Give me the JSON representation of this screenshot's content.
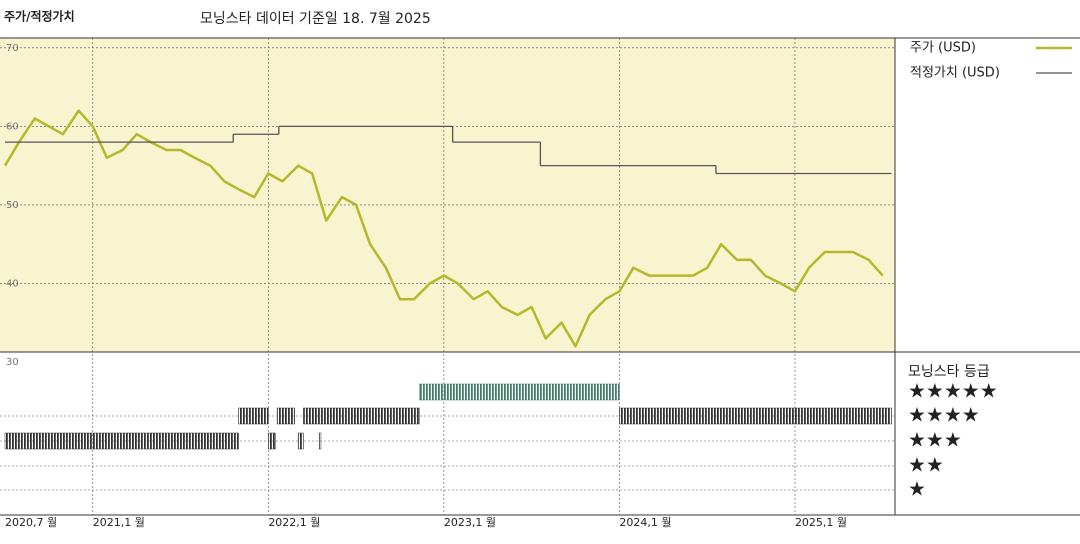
{
  "chart_data": {
    "type": "line",
    "title": "주가/적정가치",
    "subtitle": "모닝스타 데이터 기준일 18. 7월 2025",
    "xlim": [
      2020.5,
      2025.57
    ],
    "xticks": [
      {
        "value": 2020.5,
        "label": "2020,7 월"
      },
      {
        "value": 2021.0,
        "label": "2021,1 월"
      },
      {
        "value": 2022.0,
        "label": "2022,1 월"
      },
      {
        "value": 2023.0,
        "label": "2023,1 월"
      },
      {
        "value": 2024.0,
        "label": "2024,1 월"
      },
      {
        "value": 2025.0,
        "label": "2025,1 월"
      }
    ],
    "ylim": [
      30,
      71
    ],
    "yticks": [
      30,
      40,
      50,
      60,
      70
    ],
    "grid": true,
    "series": [
      {
        "name": "주가 (USD)",
        "color": "#b5b82a",
        "x": [
          2020.5,
          2020.58,
          2020.67,
          2020.75,
          2020.83,
          2020.92,
          2021.0,
          2021.08,
          2021.17,
          2021.25,
          2021.33,
          2021.42,
          2021.5,
          2021.58,
          2021.67,
          2021.75,
          2021.83,
          2021.92,
          2022.0,
          2022.08,
          2022.17,
          2022.25,
          2022.33,
          2022.42,
          2022.5,
          2022.58,
          2022.67,
          2022.75,
          2022.83,
          2022.92,
          2023.0,
          2023.08,
          2023.17,
          2023.25,
          2023.33,
          2023.42,
          2023.5,
          2023.58,
          2023.67,
          2023.75,
          2023.83,
          2023.92,
          2024.0,
          2024.08,
          2024.17,
          2024.25,
          2024.33,
          2024.42,
          2024.5,
          2024.58,
          2024.67,
          2024.75,
          2024.83,
          2024.92,
          2025.0,
          2025.08,
          2025.17,
          2025.25,
          2025.33,
          2025.42,
          2025.5
        ],
        "values": [
          55,
          58,
          61,
          60,
          59,
          62,
          60,
          56,
          57,
          59,
          58,
          57,
          57,
          56,
          55,
          53,
          52,
          51,
          54,
          53,
          55,
          54,
          48,
          51,
          50,
          45,
          42,
          38,
          38,
          40,
          41,
          40,
          38,
          39,
          37,
          36,
          37,
          33,
          35,
          32,
          36,
          38,
          39,
          42,
          41,
          41,
          41,
          41,
          42,
          45,
          43,
          43,
          41,
          40,
          39,
          42,
          44,
          44,
          44,
          43,
          41
        ]
      },
      {
        "name": "적정가치 (USD)",
        "color": "#555555",
        "step": true,
        "x": [
          2020.5,
          2021.8,
          2022.06,
          2023.05,
          2023.55,
          2024.55,
          2025.55
        ],
        "values": [
          58,
          59,
          60,
          58,
          55,
          54,
          54
        ]
      }
    ],
    "rating_title": "모닝스타 등급",
    "rating_rows": [
      {
        "label": "★★★★★",
        "periods": [
          [
            2022.86,
            2024.0
          ]
        ]
      },
      {
        "label": "★★★★",
        "periods": [
          [
            2021.83,
            2022.0
          ],
          [
            2022.05,
            2022.15
          ],
          [
            2022.2,
            2022.86
          ],
          [
            2024.0,
            2025.55
          ]
        ]
      },
      {
        "label": "★★★",
        "periods": [
          [
            2020.5,
            2021.83
          ],
          [
            2022.0,
            2022.04
          ],
          [
            2022.17,
            2022.2
          ],
          [
            2022.29,
            2022.3
          ]
        ]
      },
      {
        "label": "★★",
        "periods": []
      },
      {
        "label": "★",
        "periods": []
      }
    ],
    "rating_colors": [
      "#3f7f68",
      "#333333",
      "#333333",
      "#333333",
      "#333333"
    ]
  }
}
